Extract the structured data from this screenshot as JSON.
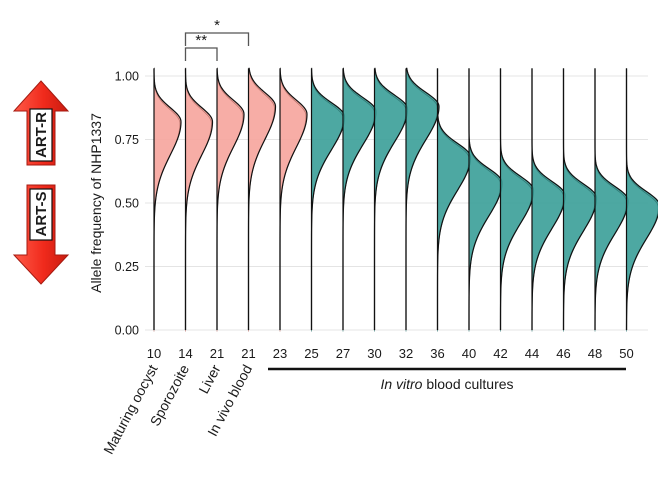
{
  "chart_data": {
    "type": "area",
    "subtype": "ridgeline-violin",
    "ylabel": "Allele frequency of NHP1337",
    "ylim": [
      0,
      1.05
    ],
    "yticks": [
      "0.00",
      "0.25",
      "0.50",
      "0.75",
      "1.00"
    ],
    "ytick_values": [
      0,
      0.25,
      0.5,
      0.75,
      1.0
    ],
    "grid": true,
    "x_labels": [
      "10",
      "14",
      "21",
      "21",
      "23",
      "25",
      "27",
      "30",
      "32",
      "36",
      "40",
      "42",
      "44",
      "46",
      "48",
      "50"
    ],
    "stage_labels": [
      "Maturing oocyst",
      "Sporozoite",
      "Liver",
      "In vivo blood"
    ],
    "group_label": {
      "italic": "In vitro",
      "rest": " blood cultures"
    },
    "significance": [
      {
        "from_index": 1,
        "to_index": 2,
        "label": "**"
      },
      {
        "from_index": 1,
        "to_index": 3,
        "label": "*"
      }
    ],
    "side_labels": {
      "top": "ART-R",
      "bottom": "ART-S"
    },
    "colors": {
      "pink": "#f6a49c",
      "teal": "#3a9e98",
      "arrow": "#f02a1c"
    },
    "distributions": [
      {
        "x": "10",
        "mode": 0.82,
        "color": "pink"
      },
      {
        "x": "14",
        "mode": 0.82,
        "color": "pink"
      },
      {
        "x": "21",
        "mode": 0.85,
        "color": "pink"
      },
      {
        "x": "21",
        "mode": 0.88,
        "color": "pink"
      },
      {
        "x": "23",
        "mode": 0.85,
        "color": "pink"
      },
      {
        "x": "25",
        "mode": 0.84,
        "color": "teal"
      },
      {
        "x": "27",
        "mode": 0.86,
        "color": "teal"
      },
      {
        "x": "30",
        "mode": 0.87,
        "color": "teal"
      },
      {
        "x": "32",
        "mode": 0.88,
        "color": "teal"
      },
      {
        "x": "36",
        "mode": 0.68,
        "color": "teal"
      },
      {
        "x": "40",
        "mode": 0.58,
        "color": "teal"
      },
      {
        "x": "42",
        "mode": 0.55,
        "color": "teal"
      },
      {
        "x": "44",
        "mode": 0.53,
        "color": "teal"
      },
      {
        "x": "46",
        "mode": 0.52,
        "color": "teal"
      },
      {
        "x": "48",
        "mode": 0.51,
        "color": "teal"
      },
      {
        "x": "50",
        "mode": 0.49,
        "color": "teal"
      }
    ]
  }
}
